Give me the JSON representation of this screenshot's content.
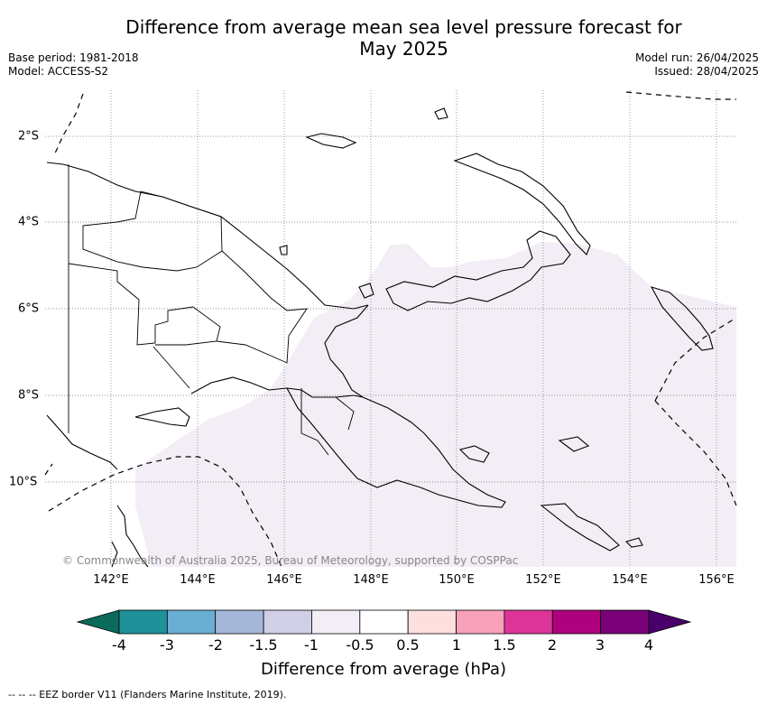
{
  "title_line1": "Difference from average mean sea level pressure forecast for",
  "title_line2": "May 2025",
  "base_period": "Base period: 1981-2018",
  "model": "Model: ACCESS-S2",
  "model_run": "Model run: 26/04/2025",
  "issued": "Issued: 28/04/2025",
  "longitude_labels": [
    "142°E",
    "144°E",
    "146°E",
    "148°E",
    "150°E",
    "152°E",
    "154°E",
    "156°E"
  ],
  "latitude_labels": [
    "2°S",
    "4°S",
    "6°S",
    "8°S",
    "10°S"
  ],
  "copyright": "© Commonwealth of Australia 2025, Bureau of Meteorology, supported by COSPPac",
  "colorbar": {
    "title": "Difference from average (hPa)",
    "tick_labels": [
      "-4",
      "-3",
      "-2",
      "-1.5",
      "-1",
      "-0.5",
      "0.5",
      "1",
      "1.5",
      "2",
      "3",
      "4"
    ],
    "colors": [
      "#0b6a5a",
      "#1e9199",
      "#6aaed3",
      "#a5b7d9",
      "#d0cfe6",
      "#f3edf6",
      "#ffffff",
      "#fddfe0",
      "#f7a1ba",
      "#dd3497",
      "#ae017e",
      "#7a0177",
      "#49006a"
    ]
  },
  "map_field": {
    "forecast_class_over_region": "-1 to -0.5",
    "fill_color": "#f3edf6"
  },
  "footnote": "-- -- -- EEZ border V11 (Flanders Marine Institute, 2019)."
}
